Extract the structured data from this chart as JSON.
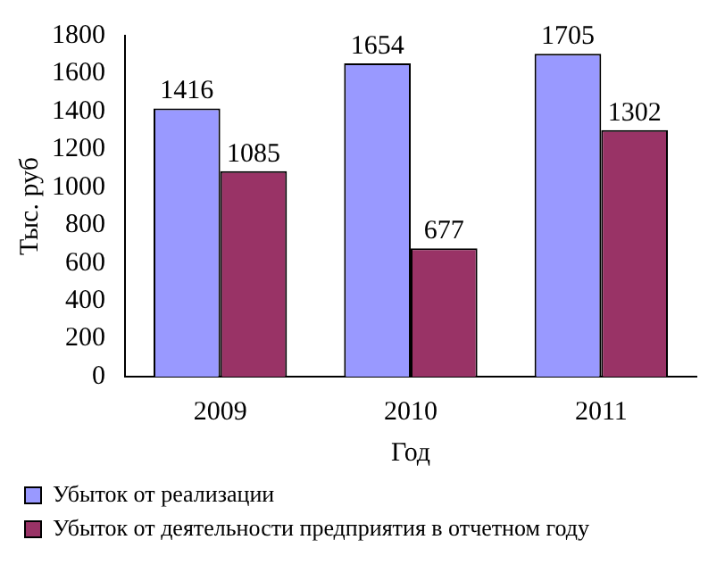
{
  "chart_data": {
    "type": "bar",
    "ylabel": "Тыс. руб",
    "xlabel": "Год",
    "categories": [
      "2009",
      "2010",
      "2011"
    ],
    "series": [
      {
        "name": "Убыток от реализации",
        "color": "#9999ff",
        "values": [
          1416,
          1654,
          1705
        ]
      },
      {
        "name": "Убыток от деятельности предприятия в отчетном году",
        "color": "#993366",
        "values": [
          1085,
          677,
          1302
        ]
      }
    ],
    "ylim": [
      0,
      1800
    ],
    "yticks": [
      0,
      200,
      400,
      600,
      800,
      1000,
      1200,
      1400,
      1600,
      1800
    ],
    "grid": false,
    "legend": "bottom",
    "data_labels": true
  }
}
